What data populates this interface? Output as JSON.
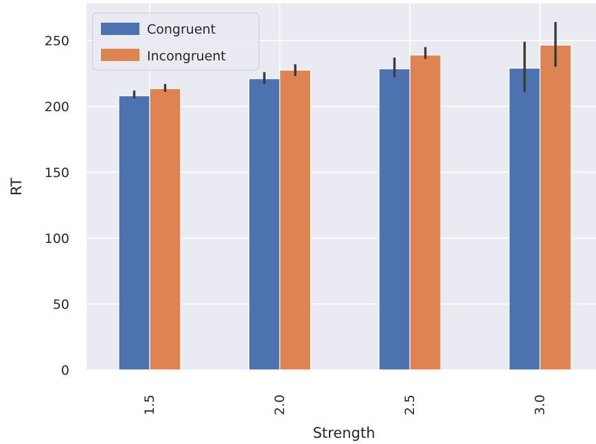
{
  "chart_data": {
    "type": "bar",
    "xlabel": "Strength",
    "ylabel": "RT",
    "categories": [
      "1.5",
      "2.0",
      "2.5",
      "3.0"
    ],
    "ylim": [
      0,
      275
    ],
    "yticks": [
      "0",
      "50",
      "100",
      "150",
      "200",
      "250"
    ],
    "grid": true,
    "legend_position": "top-left",
    "series": [
      {
        "name": "Congruent",
        "color": "#4c72b0",
        "values": [
          208,
          221,
          228.5,
          229
        ],
        "error_low": [
          206,
          217,
          222,
          211
        ],
        "error_high": [
          212,
          226,
          237,
          249
        ]
      },
      {
        "name": "Incongruent",
        "color": "#dd8452",
        "values": [
          213.5,
          227.5,
          239,
          246.5
        ],
        "error_low": [
          211,
          223,
          236,
          230
        ],
        "error_high": [
          217,
          232,
          245,
          264
        ]
      }
    ]
  }
}
